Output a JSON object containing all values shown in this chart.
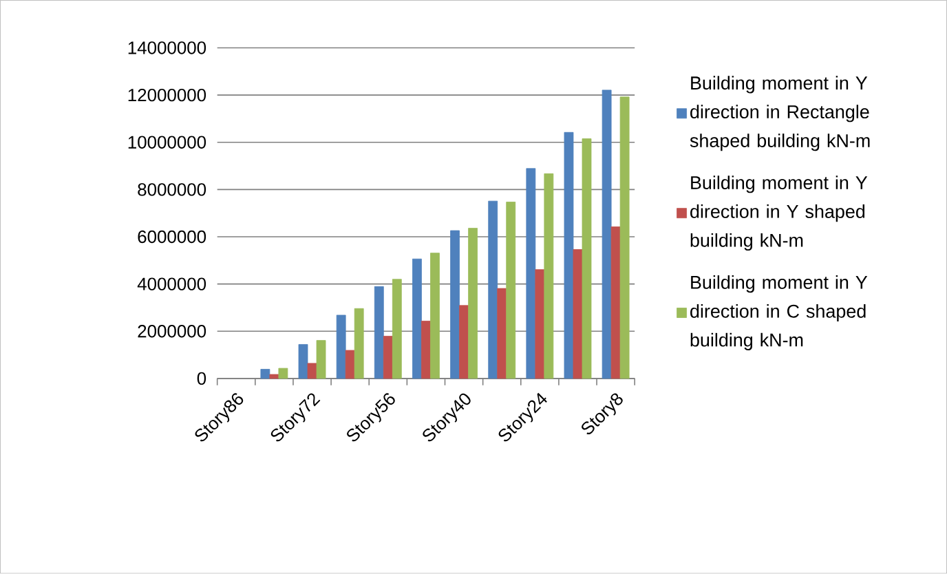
{
  "chart_data": {
    "type": "bar",
    "categories": [
      "Story86",
      null,
      "Story72",
      null,
      "Story56",
      null,
      "Story40",
      null,
      "Story24",
      null,
      "Story8"
    ],
    "series": [
      {
        "name": "Building moment in Y direction in Rectangle shaped building kN-m",
        "color": "#4f81bd",
        "values": [
          null,
          390000,
          1440000,
          2680000,
          3890000,
          5060000,
          6260000,
          7510000,
          8890000,
          10420000,
          12210000
        ]
      },
      {
        "name": "Building moment in Y direction in Y shaped building kN-m",
        "color": "#c0504d",
        "values": [
          null,
          170000,
          640000,
          1190000,
          1790000,
          2430000,
          3090000,
          3810000,
          4610000,
          5460000,
          6420000
        ]
      },
      {
        "name": "Building moment in Y direction in C shaped building kN-m",
        "color": "#9bbb59",
        "values": [
          null,
          430000,
          1610000,
          2960000,
          4200000,
          5310000,
          6360000,
          7470000,
          8670000,
          10150000,
          11920000
        ]
      }
    ],
    "ylim": [
      0,
      14000000
    ],
    "yticks": [
      0,
      2000000,
      4000000,
      6000000,
      8000000,
      10000000,
      12000000,
      14000000
    ],
    "grid": "y",
    "legend": "right"
  }
}
